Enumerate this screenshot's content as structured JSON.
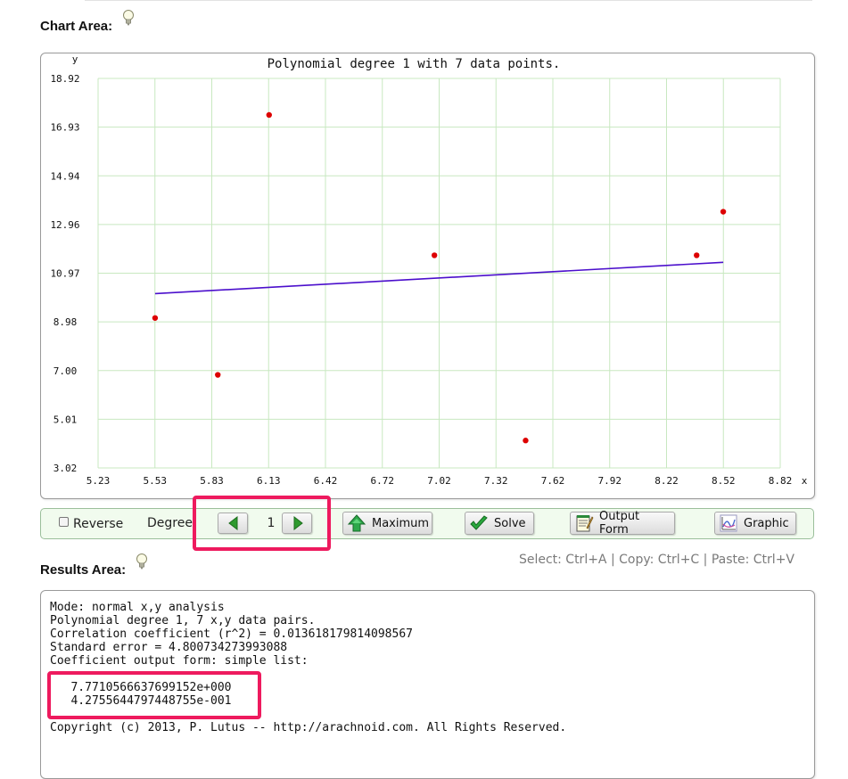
{
  "sections": {
    "chart_area_title": "Chart Area:",
    "results_area_title": "Results Area:"
  },
  "icons": {
    "hint": "lightbulb-icon",
    "prev": "arrow-left-icon",
    "next": "arrow-right-icon",
    "maximum": "green-up-arrow-icon",
    "solve": "checkmark-icon",
    "output_form": "notepad-icon",
    "graphic": "chart-graphic-icon"
  },
  "colors": {
    "points": "#dd0000",
    "fit_line": "#4b0fcc",
    "grid": "#c8e8c0",
    "highlight": "#ee1a5e"
  },
  "chart_data": {
    "type": "scatter",
    "title": "Polynomial degree 1 with 7 data points.",
    "xlabel": "x",
    "ylabel": "y",
    "xlim": [
      5.23,
      8.82
    ],
    "ylim": [
      3.02,
      18.92
    ],
    "x_ticks": [
      "5.23",
      "5.53",
      "5.83",
      "6.13",
      "6.42",
      "6.72",
      "7.02",
      "7.32",
      "7.62",
      "7.92",
      "8.22",
      "8.52",
      "8.82"
    ],
    "y_ticks": [
      "18.92",
      "16.93",
      "14.94",
      "12.96",
      "10.97",
      "8.98",
      "7.00",
      "5.01",
      "3.02"
    ],
    "grid": true,
    "points": [
      {
        "x": 5.53,
        "y": 9.14
      },
      {
        "x": 5.86,
        "y": 6.82
      },
      {
        "x": 6.13,
        "y": 17.43
      },
      {
        "x": 7.0,
        "y": 11.7
      },
      {
        "x": 7.48,
        "y": 4.14
      },
      {
        "x": 8.38,
        "y": 11.7
      },
      {
        "x": 8.52,
        "y": 13.48
      }
    ],
    "fit_line": {
      "coefficients": [
        7.771056663769915,
        0.42755644797448755
      ],
      "x_range": [
        5.53,
        8.52
      ]
    }
  },
  "controls": {
    "reverse_label": "Reverse",
    "reverse_checked": false,
    "degree_label": "Degree",
    "degree_value": "1",
    "maximum_label": "Maximum",
    "solve_label": "Solve",
    "output_form_label": "Output Form",
    "graphic_label": "Graphic"
  },
  "shortcut_hint": "Select: Ctrl+A | Copy: Ctrl+C | Paste: Ctrl+V",
  "results": {
    "lines": [
      "Mode: normal x,y analysis",
      "Polynomial degree 1, 7 x,y data pairs.",
      "Correlation coefficient (r^2) = 0.013618179814098567",
      "Standard error = 4.800734273993088",
      "Coefficient output form: simple list:",
      "",
      "   7.7710566637699152e+000",
      "   4.2755644797448755e-001",
      "",
      "Copyright (c) 2013, P. Lutus -- http://arachnoid.com. All Rights Reserved."
    ]
  }
}
